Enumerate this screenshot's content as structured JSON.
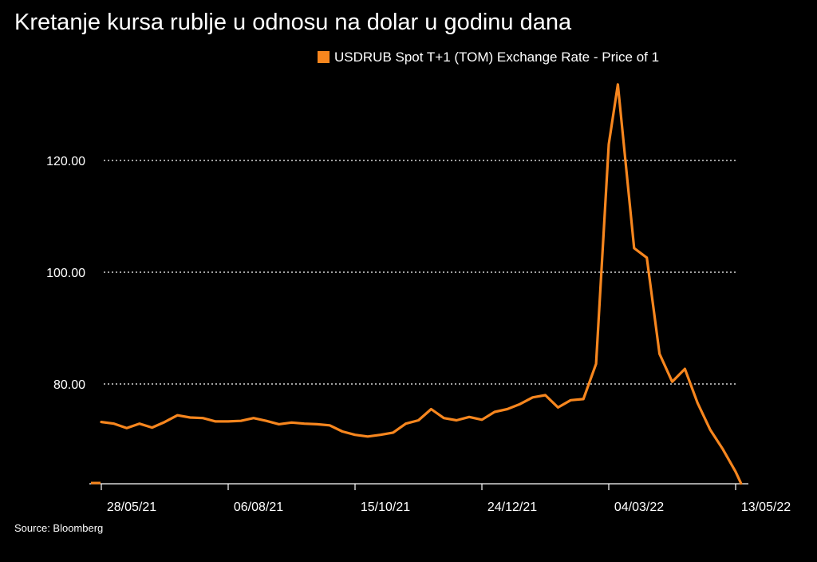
{
  "chart_data": {
    "type": "line",
    "title": "Kretanje kursa rublje u odnosu na dolar u godinu dana",
    "source": "Source: Bloomberg",
    "colors": {
      "series": "#F7861E",
      "background": "#000000",
      "text": "#FFFFFF",
      "grid": "#FFFFFF"
    },
    "legend": {
      "placement": "top-right"
    },
    "grid": {
      "y": true,
      "style": "dotted"
    },
    "ylim": [
      62,
      134
    ],
    "xlim": [
      "2021-05-21",
      "2022-05-13"
    ],
    "yticks": [
      {
        "value": 80,
        "label": "80.00"
      },
      {
        "value": 100,
        "label": "100.00"
      },
      {
        "value": 120,
        "label": "120.00"
      }
    ],
    "xticks": [
      {
        "date": "2021-05-28",
        "label": "28/05/21"
      },
      {
        "date": "2021-08-06",
        "label": "06/08/21"
      },
      {
        "date": "2021-10-15",
        "label": "15/10/21"
      },
      {
        "date": "2021-12-24",
        "label": "24/12/21"
      },
      {
        "date": "2022-03-04",
        "label": "04/03/22"
      },
      {
        "date": "2022-05-13",
        "label": "13/05/22"
      }
    ],
    "series": [
      {
        "name": "USDRUB Spot T+1 (TOM) Exchange Rate - Price of 1",
        "points": [
          [
            "2021-05-28",
            73.2
          ],
          [
            "2021-06-04",
            72.9
          ],
          [
            "2021-06-11",
            72.1
          ],
          [
            "2021-06-18",
            72.9
          ],
          [
            "2021-06-25",
            72.2
          ],
          [
            "2021-07-02",
            73.2
          ],
          [
            "2021-07-09",
            74.4
          ],
          [
            "2021-07-16",
            74.0
          ],
          [
            "2021-07-23",
            73.9
          ],
          [
            "2021-07-30",
            73.3
          ],
          [
            "2021-08-06",
            73.3
          ],
          [
            "2021-08-13",
            73.4
          ],
          [
            "2021-08-20",
            73.9
          ],
          [
            "2021-08-27",
            73.4
          ],
          [
            "2021-09-03",
            72.8
          ],
          [
            "2021-09-10",
            73.1
          ],
          [
            "2021-09-17",
            72.9
          ],
          [
            "2021-09-24",
            72.8
          ],
          [
            "2021-10-01",
            72.6
          ],
          [
            "2021-10-08",
            71.5
          ],
          [
            "2021-10-15",
            70.9
          ],
          [
            "2021-10-22",
            70.6
          ],
          [
            "2021-10-29",
            70.9
          ],
          [
            "2021-11-05",
            71.3
          ],
          [
            "2021-11-12",
            72.9
          ],
          [
            "2021-11-19",
            73.5
          ],
          [
            "2021-11-26",
            75.5
          ],
          [
            "2021-12-03",
            73.9
          ],
          [
            "2021-12-10",
            73.5
          ],
          [
            "2021-12-17",
            74.1
          ],
          [
            "2021-12-24",
            73.6
          ],
          [
            "2021-12-31",
            75.0
          ],
          [
            "2022-01-07",
            75.5
          ],
          [
            "2022-01-14",
            76.4
          ],
          [
            "2022-01-21",
            77.6
          ],
          [
            "2022-01-28",
            78.0
          ],
          [
            "2022-02-04",
            75.8
          ],
          [
            "2022-02-11",
            77.1
          ],
          [
            "2022-02-18",
            77.3
          ],
          [
            "2022-02-25",
            83.6
          ],
          [
            "2022-03-04",
            122.9
          ],
          [
            "2022-03-09",
            133.6
          ],
          [
            "2022-03-18",
            104.3
          ],
          [
            "2022-03-25",
            102.6
          ],
          [
            "2022-04-01",
            85.4
          ],
          [
            "2022-04-08",
            80.4
          ],
          [
            "2022-04-15",
            82.7
          ],
          [
            "2022-04-22",
            76.6
          ],
          [
            "2022-04-29",
            71.8
          ],
          [
            "2022-05-06",
            68.3
          ],
          [
            "2022-05-13",
            64.3
          ],
          [
            "2022-05-16",
            62.2
          ]
        ]
      }
    ]
  }
}
